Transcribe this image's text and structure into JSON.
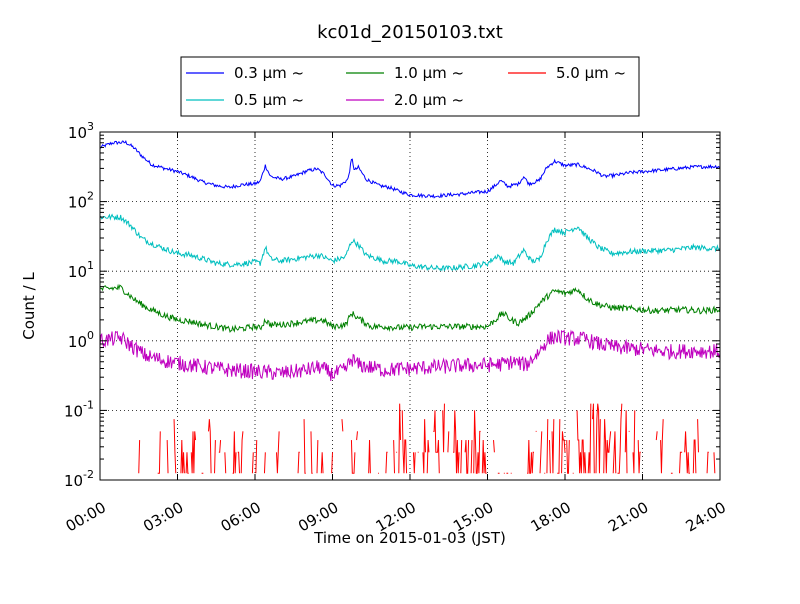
{
  "chart_data": {
    "type": "line",
    "title": "kc01d_20150103.txt",
    "xlabel": "Time on 2015-01-03 (JST)",
    "ylabel": "Count / L",
    "xlim": [
      0,
      24
    ],
    "ylim": [
      0.01,
      1000
    ],
    "yscale": "log",
    "grid": true,
    "legend_placement": "top-center",
    "x_tick_labels": [
      "00:00",
      "03:00",
      "06:00",
      "09:00",
      "12:00",
      "15:00",
      "18:00",
      "21:00",
      "24:00"
    ],
    "x_ticks": [
      0,
      3,
      6,
      9,
      12,
      15,
      18,
      21,
      24
    ],
    "y_ticks": [
      {
        "base": "10",
        "exp": "-2"
      },
      {
        "base": "10",
        "exp": "-1"
      },
      {
        "base": "10",
        "exp": "0"
      },
      {
        "base": "10",
        "exp": "1"
      },
      {
        "base": "10",
        "exp": "2"
      },
      {
        "base": "10",
        "exp": "3"
      }
    ],
    "series": [
      {
        "name": "0.3 μm ~",
        "color": "#0000ff",
        "noise": 0.025,
        "points": [
          [
            0,
            600
          ],
          [
            0.5,
            700
          ],
          [
            1.0,
            710
          ],
          [
            1.3,
            600
          ],
          [
            1.6,
            460
          ],
          [
            2.0,
            340
          ],
          [
            2.5,
            300
          ],
          [
            3.0,
            270
          ],
          [
            3.5,
            230
          ],
          [
            4.0,
            190
          ],
          [
            4.5,
            170
          ],
          [
            5.0,
            160
          ],
          [
            5.5,
            175
          ],
          [
            6.0,
            180
          ],
          [
            6.2,
            195
          ],
          [
            6.4,
            330
          ],
          [
            6.6,
            230
          ],
          [
            7.0,
            210
          ],
          [
            7.5,
            230
          ],
          [
            8.0,
            275
          ],
          [
            8.4,
            295
          ],
          [
            8.7,
            245
          ],
          [
            9.0,
            170
          ],
          [
            9.3,
            170
          ],
          [
            9.6,
            210
          ],
          [
            9.75,
            420
          ],
          [
            9.85,
            280
          ],
          [
            10.0,
            310
          ],
          [
            10.3,
            210
          ],
          [
            10.8,
            170
          ],
          [
            11.2,
            160
          ],
          [
            11.6,
            140
          ],
          [
            12.0,
            125
          ],
          [
            12.5,
            122
          ],
          [
            13.0,
            120
          ],
          [
            13.5,
            125
          ],
          [
            14.0,
            128
          ],
          [
            14.5,
            135
          ],
          [
            15.0,
            140
          ],
          [
            15.3,
            170
          ],
          [
            15.5,
            200
          ],
          [
            15.8,
            165
          ],
          [
            16.2,
            180
          ],
          [
            16.4,
            230
          ],
          [
            16.6,
            180
          ],
          [
            17.0,
            200
          ],
          [
            17.3,
            310
          ],
          [
            17.6,
            380
          ],
          [
            18.0,
            330
          ],
          [
            18.5,
            340
          ],
          [
            18.8,
            310
          ],
          [
            19.2,
            270
          ],
          [
            19.5,
            230
          ],
          [
            20.0,
            240
          ],
          [
            20.5,
            260
          ],
          [
            21.0,
            270
          ],
          [
            22.0,
            290
          ],
          [
            23.0,
            315
          ],
          [
            24.0,
            320
          ]
        ]
      },
      {
        "name": "0.5 μm ~",
        "color": "#00bfbf",
        "noise": 0.04,
        "points": [
          [
            0,
            60
          ],
          [
            0.8,
            60
          ],
          [
            1.2,
            45
          ],
          [
            1.6,
            30
          ],
          [
            2.0,
            25
          ],
          [
            2.5,
            21
          ],
          [
            3.0,
            18
          ],
          [
            3.5,
            17
          ],
          [
            4.0,
            15
          ],
          [
            4.5,
            13
          ],
          [
            5.0,
            12.5
          ],
          [
            5.5,
            12.8
          ],
          [
            6.0,
            13.5
          ],
          [
            6.2,
            13
          ],
          [
            6.4,
            22
          ],
          [
            6.6,
            15
          ],
          [
            7.0,
            14
          ],
          [
            7.5,
            15
          ],
          [
            8.0,
            16
          ],
          [
            8.5,
            17
          ],
          [
            9.0,
            14
          ],
          [
            9.5,
            16
          ],
          [
            9.75,
            28
          ],
          [
            10.0,
            24
          ],
          [
            10.3,
            17
          ],
          [
            11.0,
            14
          ],
          [
            11.5,
            14
          ],
          [
            12.0,
            12
          ],
          [
            12.5,
            11.5
          ],
          [
            13.0,
            11
          ],
          [
            13.5,
            11
          ],
          [
            14.0,
            11.5
          ],
          [
            14.5,
            12
          ],
          [
            15.0,
            13
          ],
          [
            15.4,
            17
          ],
          [
            15.6,
            14
          ],
          [
            16.0,
            13
          ],
          [
            16.4,
            20
          ],
          [
            16.7,
            14
          ],
          [
            17.0,
            14.5
          ],
          [
            17.3,
            28
          ],
          [
            17.6,
            40
          ],
          [
            18.0,
            36
          ],
          [
            18.5,
            44
          ],
          [
            18.8,
            32
          ],
          [
            19.3,
            22
          ],
          [
            19.8,
            18
          ],
          [
            20.5,
            19
          ],
          [
            21.0,
            19.5
          ],
          [
            22.0,
            20
          ],
          [
            23.0,
            22
          ],
          [
            24.0,
            21
          ]
        ]
      },
      {
        "name": "1.0 μm ~",
        "color": "#008000",
        "noise": 0.045,
        "points": [
          [
            0,
            5.5
          ],
          [
            0.8,
            5.8
          ],
          [
            1.3,
            4
          ],
          [
            1.8,
            3
          ],
          [
            2.5,
            2.3
          ],
          [
            3.0,
            2.0
          ],
          [
            3.5,
            1.9
          ],
          [
            4.0,
            1.7
          ],
          [
            4.5,
            1.6
          ],
          [
            5.0,
            1.45
          ],
          [
            5.5,
            1.5
          ],
          [
            6.0,
            1.6
          ],
          [
            6.2,
            1.5
          ],
          [
            6.4,
            2.0
          ],
          [
            6.6,
            1.7
          ],
          [
            7.0,
            1.7
          ],
          [
            7.5,
            1.8
          ],
          [
            8.0,
            1.9
          ],
          [
            8.6,
            2.0
          ],
          [
            9.0,
            1.6
          ],
          [
            9.5,
            1.7
          ],
          [
            9.75,
            2.5
          ],
          [
            10.0,
            2.1
          ],
          [
            10.5,
            1.6
          ],
          [
            11.0,
            1.6
          ],
          [
            11.5,
            1.55
          ],
          [
            12.0,
            1.55
          ],
          [
            12.5,
            1.6
          ],
          [
            13.0,
            1.6
          ],
          [
            13.5,
            1.6
          ],
          [
            14.0,
            1.6
          ],
          [
            14.5,
            1.6
          ],
          [
            15.0,
            1.6
          ],
          [
            15.3,
            2.0
          ],
          [
            15.6,
            2.5
          ],
          [
            15.9,
            2.0
          ],
          [
            16.2,
            1.8
          ],
          [
            16.6,
            2.3
          ],
          [
            17.0,
            3.4
          ],
          [
            17.3,
            4.3
          ],
          [
            17.6,
            5.2
          ],
          [
            18.0,
            4.8
          ],
          [
            18.5,
            5.5
          ],
          [
            18.8,
            4.2
          ],
          [
            19.2,
            3.4
          ],
          [
            19.8,
            3.0
          ],
          [
            20.5,
            2.9
          ],
          [
            21.5,
            2.7
          ],
          [
            22.5,
            2.8
          ],
          [
            23.3,
            2.7
          ],
          [
            24.0,
            2.8
          ]
        ]
      },
      {
        "name": "2.0 μm ~",
        "color": "#bf00bf",
        "noise": 0.11,
        "points": [
          [
            0,
            1.0
          ],
          [
            0.8,
            1.1
          ],
          [
            1.3,
            0.8
          ],
          [
            1.8,
            0.6
          ],
          [
            2.5,
            0.52
          ],
          [
            3.0,
            0.48
          ],
          [
            4.0,
            0.42
          ],
          [
            5.0,
            0.38
          ],
          [
            6.0,
            0.36
          ],
          [
            7.0,
            0.34
          ],
          [
            8.0,
            0.38
          ],
          [
            8.5,
            0.42
          ],
          [
            9.0,
            0.33
          ],
          [
            9.5,
            0.38
          ],
          [
            9.75,
            0.55
          ],
          [
            10.0,
            0.45
          ],
          [
            11.0,
            0.38
          ],
          [
            12.0,
            0.4
          ],
          [
            13.0,
            0.42
          ],
          [
            14.0,
            0.44
          ],
          [
            15.0,
            0.45
          ],
          [
            15.5,
            0.46
          ],
          [
            16.0,
            0.5
          ],
          [
            16.5,
            0.45
          ],
          [
            17.0,
            0.7
          ],
          [
            17.3,
            1.0
          ],
          [
            17.6,
            1.15
          ],
          [
            18.0,
            1.1
          ],
          [
            18.8,
            1.05
          ],
          [
            19.3,
            0.9
          ],
          [
            20.0,
            0.8
          ],
          [
            21.0,
            0.75
          ],
          [
            22.0,
            0.7
          ],
          [
            23.0,
            0.72
          ],
          [
            24.0,
            0.7
          ]
        ]
      },
      {
        "name": "5.0 μm ~",
        "color": "#ff0000",
        "noise": 0,
        "points": []
      }
    ]
  }
}
